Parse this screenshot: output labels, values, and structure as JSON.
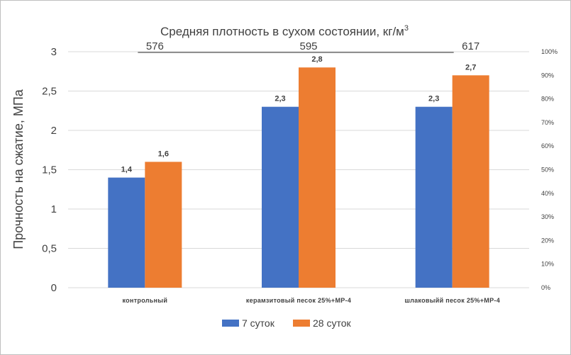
{
  "chart_data": {
    "type": "bar",
    "title": "Средняя плотность в сухом состоянии, кг/м",
    "title_superscript": "3",
    "ylabel": "Прочность на сжатие, МПа",
    "ylim": [
      0,
      3
    ],
    "y_ticks": [
      "0",
      "0,5",
      "1",
      "1,5",
      "2",
      "2,5",
      "3"
    ],
    "y2_ticks": [
      "0%",
      "10%",
      "20%",
      "30%",
      "40%",
      "50%",
      "60%",
      "70%",
      "80%",
      "90%",
      "100%"
    ],
    "categories": [
      "контрольный",
      "керамзитовый  песок 25%+МР-4",
      "шлаковыйй  песок  25%+МР-4"
    ],
    "density_values": [
      "576",
      "595",
      "617"
    ],
    "series": [
      {
        "name": "7  суток",
        "color": "#4472c4",
        "values": [
          1.4,
          2.3,
          2.3
        ],
        "labels": [
          "1,4",
          "2,3",
          "2,3"
        ]
      },
      {
        "name": "28 суток",
        "color": "#ed7d31",
        "values": [
          1.6,
          2.8,
          2.7
        ],
        "labels": [
          "1,6",
          "2,8",
          "2,7"
        ]
      }
    ],
    "grid": true,
    "legend_position": "bottom"
  }
}
